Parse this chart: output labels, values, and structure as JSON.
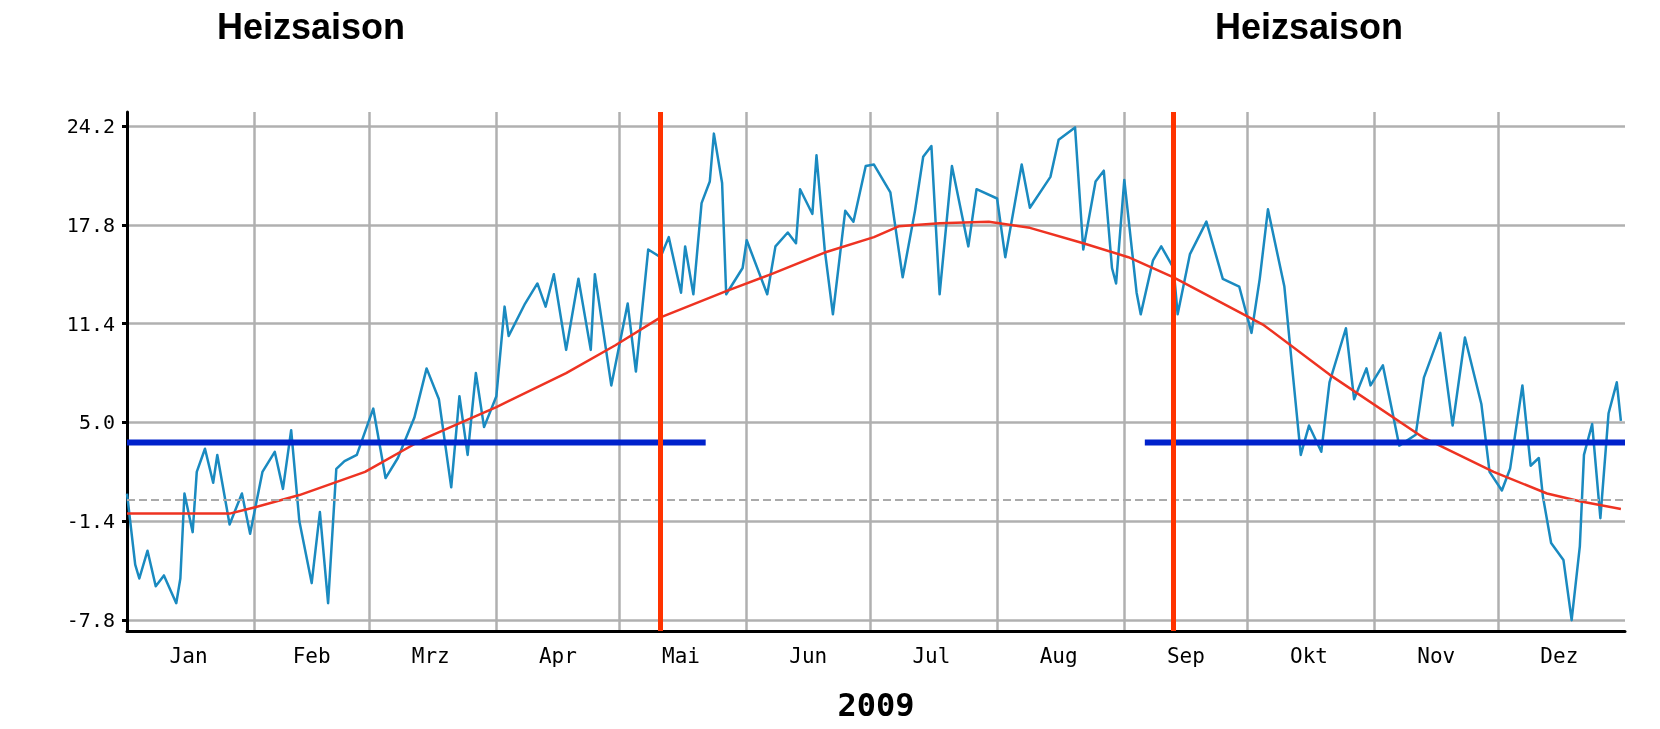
{
  "chart_data": {
    "type": "line",
    "xlabel": "2009",
    "annotations": [
      "Heizsaison",
      "Heizsaison"
    ],
    "xlim": [
      "2009-01-01",
      "2010-01-01"
    ],
    "xticks": [
      {
        "value": "2009-02-01",
        "label": null
      },
      {
        "value": "2009-03-01",
        "label": null
      },
      {
        "value": "2009-04-01",
        "label": null
      },
      {
        "value": "2009-05-01",
        "label": null
      },
      {
        "value": "2009-06-01",
        "label": null
      },
      {
        "value": "2009-07-01",
        "label": null
      },
      {
        "value": "2009-08-01",
        "label": null
      },
      {
        "value": "2009-09-01",
        "label": null
      },
      {
        "value": "2009-10-01",
        "label": null
      },
      {
        "value": "2009-11-01",
        "label": null
      },
      {
        "value": "2009-12-01",
        "label": null
      },
      {
        "value": "2009-01-16",
        "label": "Jan"
      },
      {
        "value": "2009-02-15",
        "label": "Feb"
      },
      {
        "value": "2009-03-16",
        "label": "Mrz"
      },
      {
        "value": "2009-04-16",
        "label": "Apr"
      },
      {
        "value": "2009-05-16",
        "label": "Mai"
      },
      {
        "value": "2009-06-16",
        "label": "Jun"
      },
      {
        "value": "2009-07-16",
        "label": "Jul"
      },
      {
        "value": "2009-08-16",
        "label": "Aug"
      },
      {
        "value": "2009-09-16",
        "label": "Sep"
      },
      {
        "value": "2009-10-16",
        "label": "Okt"
      },
      {
        "value": "2009-11-16",
        "label": "Nov"
      },
      {
        "value": "2009-12-16",
        "label": "Dez"
      }
    ],
    "ylim": [
      -8.5,
      25.1
    ],
    "yticks": [
      -7.8,
      -1.4,
      {
        "value": 5,
        "label": "5.0"
      },
      11.4,
      17.8,
      24.2
    ],
    "grid": true,
    "marker": "none",
    "line_style": "solid",
    "ref_lines": [
      {
        "axis": "y",
        "value": 0,
        "color": "#aaaaaa",
        "line_style": "dashed"
      },
      {
        "axis": "x",
        "value": "2009-05-11",
        "color": "#ff3300",
        "line_style": "solid"
      },
      {
        "axis": "x",
        "value": "2009-09-13",
        "color": "#ff3300",
        "line_style": "solid"
      }
    ],
    "series": [
      {
        "color": "#1a8ac0",
        "x": [
          "2009-01-01",
          "2009-01-03",
          "2009-01-04",
          "2009-01-06",
          "2009-01-08",
          "2009-01-10",
          "2009-01-13",
          "2009-01-14",
          "2009-01-15",
          "2009-01-17",
          "2009-01-18",
          "2009-01-20",
          "2009-01-22",
          "2009-01-23",
          "2009-01-26",
          "2009-01-29",
          "2009-01-31",
          "2009-02-03",
          "2009-02-06",
          "2009-02-08",
          "2009-02-10",
          "2009-02-12",
          "2009-02-15",
          "2009-02-17",
          "2009-02-19",
          "2009-02-21",
          "2009-02-23",
          "2009-02-26",
          "2009-03-02",
          "2009-03-05",
          "2009-03-08",
          "2009-03-12",
          "2009-03-15",
          "2009-03-18",
          "2009-03-21",
          "2009-03-23",
          "2009-03-25",
          "2009-03-27",
          "2009-03-29",
          "2009-04-01",
          "2009-04-03",
          "2009-04-04",
          "2009-04-08",
          "2009-04-11",
          "2009-04-13",
          "2009-04-15",
          "2009-04-18",
          "2009-04-21",
          "2009-04-24",
          "2009-04-25",
          "2009-04-29",
          "2009-05-03",
          "2009-05-05",
          "2009-05-08",
          "2009-05-11",
          "2009-05-13",
          "2009-05-16",
          "2009-05-17",
          "2009-05-19",
          "2009-05-21",
          "2009-05-23",
          "2009-05-24",
          "2009-05-26",
          "2009-05-27",
          "2009-05-31",
          "2009-06-01",
          "2009-06-06",
          "2009-06-08",
          "2009-06-11",
          "2009-06-13",
          "2009-06-14",
          "2009-06-17",
          "2009-06-18",
          "2009-06-20",
          "2009-06-22",
          "2009-06-25",
          "2009-06-27",
          "2009-06-30",
          "2009-07-02",
          "2009-07-06",
          "2009-07-09",
          "2009-07-12",
          "2009-07-14",
          "2009-07-16",
          "2009-07-18",
          "2009-07-21",
          "2009-07-25",
          "2009-07-27",
          "2009-08-01",
          "2009-08-03",
          "2009-08-07",
          "2009-08-09",
          "2009-08-14",
          "2009-08-16",
          "2009-08-20",
          "2009-08-22",
          "2009-08-25",
          "2009-08-27",
          "2009-08-29",
          "2009-08-30",
          "2009-09-01",
          "2009-09-04",
          "2009-09-05",
          "2009-09-08",
          "2009-09-10",
          "2009-09-13",
          "2009-09-14",
          "2009-09-17",
          "2009-09-21",
          "2009-09-25",
          "2009-09-29",
          "2009-10-02",
          "2009-10-04",
          "2009-10-06",
          "2009-10-10",
          "2009-10-12",
          "2009-10-14",
          "2009-10-16",
          "2009-10-19",
          "2009-10-21",
          "2009-10-25",
          "2009-10-27",
          "2009-10-30",
          "2009-10-31",
          "2009-11-03",
          "2009-11-07",
          "2009-11-11",
          "2009-11-13",
          "2009-11-17",
          "2009-11-20",
          "2009-11-23",
          "2009-11-27",
          "2009-11-29",
          "2009-12-02",
          "2009-12-04",
          "2009-12-07",
          "2009-12-09",
          "2009-12-11",
          "2009-12-12",
          "2009-12-14",
          "2009-12-17",
          "2009-12-19",
          "2009-12-21",
          "2009-12-22",
          "2009-12-24",
          "2009-12-26",
          "2009-12-28",
          "2009-12-30",
          "2009-12-31"
        ],
        "values": [
          0.4,
          -4.2,
          -5.1,
          -3.3,
          -5.6,
          -4.9,
          -6.7,
          -5.1,
          0.4,
          -2.1,
          1.8,
          3.3,
          1.1,
          2.9,
          -1.6,
          0.4,
          -2.2,
          1.8,
          3.1,
          0.7,
          4.5,
          -1.4,
          -5.4,
          -0.8,
          -6.7,
          2.0,
          2.5,
          2.9,
          5.9,
          1.4,
          2.7,
          5.3,
          8.5,
          6.5,
          0.8,
          6.7,
          2.9,
          8.2,
          4.7,
          6.7,
          12.5,
          10.6,
          12.7,
          14.0,
          12.5,
          14.6,
          9.7,
          14.3,
          9.7,
          14.6,
          7.4,
          12.7,
          8.3,
          16.2,
          15.7,
          17.0,
          13.4,
          16.4,
          13.3,
          19.2,
          20.6,
          23.7,
          20.5,
          13.3,
          15.0,
          16.8,
          13.3,
          16.4,
          17.3,
          16.6,
          20.1,
          18.5,
          22.3,
          16.2,
          12.0,
          18.7,
          18.0,
          21.6,
          21.7,
          19.9,
          14.4,
          18.7,
          22.2,
          22.9,
          13.3,
          21.6,
          16.4,
          20.1,
          19.5,
          15.7,
          21.7,
          18.9,
          20.9,
          23.3,
          24.1,
          16.2,
          20.6,
          21.3,
          15.0,
          14.0,
          20.7,
          13.4,
          12.0,
          15.5,
          16.4,
          15.0,
          12.0,
          15.9,
          18.0,
          14.3,
          13.8,
          10.8,
          14.3,
          18.8,
          13.8,
          8.3,
          2.9,
          4.8,
          3.1,
          7.6,
          11.1,
          6.5,
          8.5,
          7.4,
          8.7,
          3.5,
          4.2,
          7.9,
          10.8,
          4.8,
          10.5,
          6.2,
          1.8,
          0.6,
          2.0,
          7.4,
          2.2,
          2.7,
          0.2,
          -2.8,
          -3.9,
          -7.8,
          -3.0,
          2.9,
          4.9,
          -1.2,
          5.6,
          7.6,
          5.1
        ]
      },
      {
        "color": "#ee3322",
        "x": [
          "2009-01-01",
          "2009-01-26",
          "2009-02-01",
          "2009-02-12",
          "2009-02-28",
          "2009-03-14",
          "2009-04-01",
          "2009-04-18",
          "2009-04-30",
          "2009-05-11",
          "2009-05-27",
          "2009-06-07",
          "2009-06-20",
          "2009-07-02",
          "2009-07-08",
          "2009-07-18",
          "2009-07-30",
          "2009-08-09",
          "2009-08-22",
          "2009-09-02",
          "2009-09-13",
          "2009-10-05",
          "2009-10-21",
          "2009-11-13",
          "2009-11-30",
          "2009-12-13",
          "2009-12-21",
          "2009-12-31"
        ],
        "values": [
          -0.9,
          -0.9,
          -0.5,
          0.3,
          1.8,
          3.9,
          6.0,
          8.2,
          10.0,
          11.8,
          13.5,
          14.6,
          16.0,
          17.0,
          17.7,
          17.9,
          18.0,
          17.6,
          16.6,
          15.7,
          14.4,
          11.3,
          8.1,
          4.0,
          1.8,
          0.4,
          -0.1,
          -0.6
        ]
      },
      {
        "color": "#0022cc",
        "x": [
          "2009-01-01",
          "2009-05-22"
        ],
        "values": [
          3.7,
          3.7
        ]
      },
      {
        "color": "#0022cc",
        "x": [
          "2009-09-06",
          "2010-01-01"
        ],
        "values": [
          3.7,
          3.7
        ]
      }
    ]
  }
}
